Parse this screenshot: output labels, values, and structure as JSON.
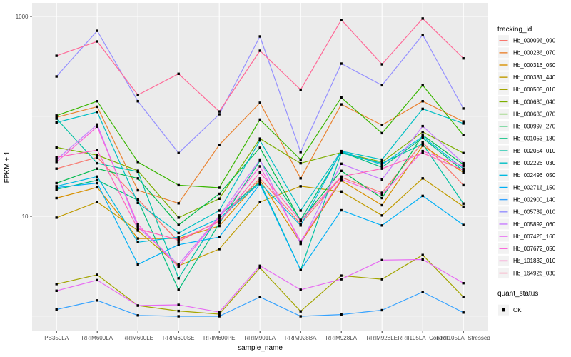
{
  "figure": {
    "x_axis_title": "sample_name",
    "y_axis_title": "FPKM + 1",
    "legend_title": "tracking_id",
    "quant_legend_title": "quant_status",
    "quant_legend_label": "OK"
  },
  "style": {
    "panel_bg": "#EBEBEB",
    "grid_color": "#FFFFFF",
    "tick_label_color": "#4D4D4D",
    "axis_title_color": "#000000",
    "tick_mark_color": "#333333",
    "point_color": "#000000",
    "legend_key_bg": "#F2F2F2"
  },
  "chart_data": {
    "type": "line",
    "x_categories": [
      "PB350LA",
      "RRIM600LA",
      "RRIM600LE",
      "RRIM600SE",
      "RRIM600PE",
      "RRIM901LA",
      "RRIM928BA",
      "RRIM928LA",
      "RRIM928LE",
      "RRII105LA_Control",
      "RRII105LA_Stressed"
    ],
    "xlabel": "sample_name",
    "ylabel": "FPKM + 1",
    "y_scale": "log10",
    "y_major_ticks": [
      {
        "label": "1000",
        "value": 1000
      },
      {
        "label": "10",
        "value": 10
      }
    ],
    "y_major_gridlines": [
      10,
      1000
    ],
    "y_minor_gridlines": [
      1,
      100
    ],
    "grid": true,
    "legend_position": "right",
    "point_marker": "black-square",
    "series": [
      {
        "name": "Hb_000096_090",
        "color": "#F8766D",
        "values": [
          30,
          39,
          14.8,
          5.6,
          9.0,
          24,
          8.4,
          24.6,
          17.2,
          55,
          20.5
        ]
      },
      {
        "name": "Hb_000236_070",
        "color": "#EA8331",
        "values": [
          98,
          125,
          18.2,
          13.5,
          52,
          137,
          24,
          132,
          82,
          142,
          89
        ]
      },
      {
        "name": "Hb_000316_050",
        "color": "#D89000",
        "values": [
          15.2,
          19.5,
          6.0,
          6.0,
          8.0,
          23,
          5.4,
          22.8,
          12.9,
          51,
          27.5
        ]
      },
      {
        "name": "Hb_000331_440",
        "color": "#C09B00",
        "values": [
          9.7,
          13.9,
          7.2,
          3.2,
          4.7,
          13.9,
          20,
          17.7,
          10.2,
          24,
          12.5
        ]
      },
      {
        "name": "Hb_000505_010",
        "color": "#A3A500",
        "values": [
          2.1,
          2.6,
          1.28,
          1.13,
          1.05,
          3.05,
          1.12,
          2.55,
          2.35,
          4.1,
          1.56
        ]
      },
      {
        "name": "Hb_000630_040",
        "color": "#7CAE00",
        "values": [
          49,
          41,
          28.6,
          9.7,
          15.0,
          60,
          34,
          43.5,
          35,
          70,
          43
        ]
      },
      {
        "name": "Hb_000630_070",
        "color": "#39B600",
        "values": [
          102,
          142,
          35,
          20.5,
          19.3,
          93,
          37,
          154,
          68,
          205,
          65
        ]
      },
      {
        "name": "Hb_000997_270",
        "color": "#00BB4E",
        "values": [
          21.5,
          30,
          24,
          8.2,
          16.8,
          48.6,
          9.0,
          28.5,
          15.2,
          65,
          33
        ]
      },
      {
        "name": "Hb_001053_180",
        "color": "#00BF7D",
        "values": [
          18.6,
          23,
          14.5,
          1.84,
          8.5,
          36,
          9.2,
          44,
          31,
          61,
          28.5
        ]
      },
      {
        "name": "Hb_002054_010",
        "color": "#00C1A3",
        "values": [
          95,
          34,
          28,
          2.4,
          10.2,
          22,
          2.9,
          43,
          34,
          53,
          13.4
        ]
      },
      {
        "name": "Hb_002226_030",
        "color": "#00BFC4",
        "values": [
          87,
          111,
          13.6,
          6.8,
          11.4,
          57.5,
          11.4,
          45,
          37,
          119,
          85
        ]
      },
      {
        "name": "Hb_002496_050",
        "color": "#00BAE0",
        "values": [
          20,
          25,
          5.5,
          6.2,
          9.5,
          21.5,
          8.1,
          44.5,
          33,
          63,
          30
        ]
      },
      {
        "name": "Hb_002716_150",
        "color": "#00B0F6",
        "values": [
          19.4,
          21.5,
          3.3,
          5.2,
          6.2,
          21,
          2.9,
          11.5,
          8.1,
          16,
          8.2
        ]
      },
      {
        "name": "Hb_002900_140",
        "color": "#35A2FF",
        "values": [
          1.17,
          1.44,
          1.02,
          1.0,
          1.0,
          1.56,
          1.0,
          1.04,
          1.15,
          1.75,
          1.09
        ]
      },
      {
        "name": "Hb_005739_010",
        "color": "#9590FF",
        "values": [
          251,
          719,
          142,
          43,
          105,
          631,
          44,
          338,
          205,
          655,
          120
        ]
      },
      {
        "name": "Hb_005892_060",
        "color": "#C77CFF",
        "values": [
          37,
          83,
          7.8,
          3.3,
          10,
          37,
          5.3,
          33.6,
          23.4,
          80,
          34
        ]
      },
      {
        "name": "Hb_007426_160",
        "color": "#E76BF3",
        "values": [
          1.8,
          2.3,
          1.28,
          1.3,
          1.1,
          3.2,
          1.84,
          2.35,
          3.65,
          3.7,
          2.14
        ]
      },
      {
        "name": "Hb_007672_050",
        "color": "#FA62DB",
        "values": [
          35,
          79,
          8.3,
          3.1,
          9.8,
          31.6,
          5.6,
          23.5,
          16.5,
          45,
          32
        ]
      },
      {
        "name": "Hb_101832_010",
        "color": "#FF62BC",
        "values": [
          39,
          46,
          7.5,
          5.8,
          8.8,
          27.5,
          9.0,
          25,
          30,
          43,
          29
        ]
      },
      {
        "name": "Hb_164926_030",
        "color": "#FF6A98",
        "values": [
          404,
          562,
          164,
          267,
          112,
          454,
          185,
          925,
          332,
          953,
          381
        ]
      }
    ]
  }
}
